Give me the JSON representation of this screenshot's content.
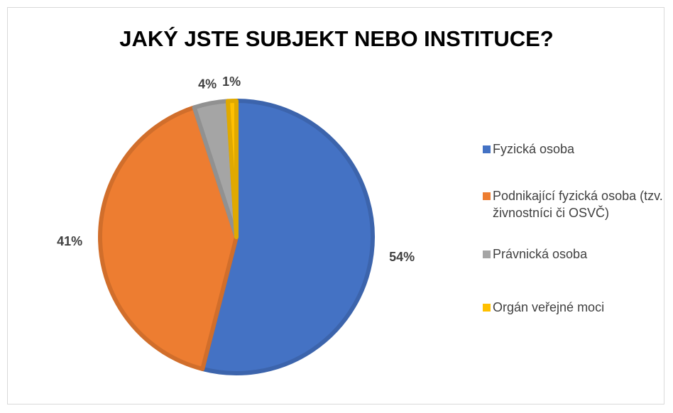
{
  "chart_data": {
    "type": "pie",
    "title": "JAKÝ JSTE SUBJEKT NEBO INSTITUCE?",
    "categories": [
      "Fyzická osoba",
      "Podnikající fyzická osoba (tzv. živnostníci či OSVČ)",
      "Právnická osoba",
      "Orgán veřejné moci"
    ],
    "values": [
      54,
      41,
      4,
      1
    ],
    "value_labels": [
      "54%",
      "41%",
      "4%",
      "1%"
    ],
    "colors": [
      "#4472c4",
      "#ed7d31",
      "#a5a5a5",
      "#ffc000"
    ],
    "legend": "right"
  }
}
